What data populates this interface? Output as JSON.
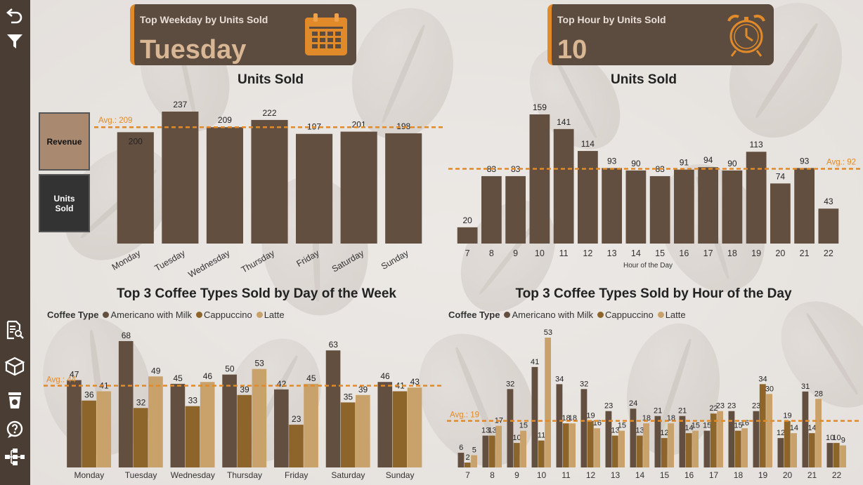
{
  "cards": {
    "weekday": {
      "label": "Top Weekday by Units Sold",
      "value": "Tuesday",
      "icon": "calendar-icon"
    },
    "hour": {
      "label": "Top Hour by Units Sold",
      "value": "10",
      "icon": "alarm-clock-icon"
    }
  },
  "toggles": {
    "revenue": "Revenue",
    "units_sold": "Units Sold"
  },
  "rail_icons": [
    "undo-icon",
    "filter-icon",
    "report-search-icon",
    "box-icon",
    "coffee-cup-icon",
    "help-icon",
    "hierarchy-icon"
  ],
  "colors": {
    "bar": "#634f40",
    "americano": "#634f40",
    "cappuccino": "#8d6429",
    "latte": "#c9a26b",
    "avg": "#e08a2a",
    "accent": "#e08a2a"
  },
  "legend": {
    "title": "Coffee Type",
    "items": [
      {
        "name": "Americano with Milk",
        "color": "#634f40"
      },
      {
        "name": "Cappuccino",
        "color": "#8d6429"
      },
      {
        "name": "Latte",
        "color": "#c9a26b"
      }
    ]
  },
  "chart_data": [
    {
      "id": "weekday-units",
      "type": "bar",
      "title": "Units Sold",
      "categories": [
        "Monday",
        "Tuesday",
        "Wednesday",
        "Thursday",
        "Friday",
        "Saturday",
        "Sunday"
      ],
      "values": [
        200,
        237,
        209,
        222,
        197,
        201,
        198
      ],
      "average": {
        "label": "Avg.: 209",
        "value": 209
      },
      "xlabel": "",
      "ylabel": "",
      "ylim": [
        0,
        237
      ]
    },
    {
      "id": "hour-units",
      "type": "bar",
      "title": "Units Sold",
      "categories": [
        "7",
        "8",
        "9",
        "10",
        "11",
        "12",
        "13",
        "14",
        "15",
        "16",
        "17",
        "18",
        "19",
        "20",
        "21",
        "22"
      ],
      "values": [
        20,
        83,
        83,
        159,
        141,
        114,
        93,
        90,
        83,
        91,
        94,
        90,
        113,
        74,
        93,
        43
      ],
      "average": {
        "label": "Avg.: 92",
        "value": 92
      },
      "xlabel": "Hour of the Day",
      "ylabel": "",
      "ylim": [
        0,
        159
      ]
    },
    {
      "id": "weekday-coffee",
      "type": "bar",
      "title": "Top 3 Coffee Types Sold by Day of the Week",
      "categories": [
        "Monday",
        "Tuesday",
        "Wednesday",
        "Thursday",
        "Friday",
        "Saturday",
        "Sunday"
      ],
      "series": [
        {
          "name": "Americano with Milk",
          "values": [
            47,
            68,
            45,
            50,
            42,
            63,
            46
          ]
        },
        {
          "name": "Cappuccino",
          "values": [
            36,
            32,
            33,
            39,
            23,
            35,
            41
          ]
        },
        {
          "name": "Latte",
          "values": [
            41,
            49,
            46,
            53,
            45,
            39,
            43
          ]
        }
      ],
      "average": {
        "label": "Avg.: 44",
        "value": 44
      },
      "ylim": [
        0,
        68
      ]
    },
    {
      "id": "hour-coffee",
      "type": "bar",
      "title": "Top 3 Coffee Types Sold by Hour of the Day",
      "categories": [
        "7",
        "8",
        "9",
        "10",
        "11",
        "12",
        "13",
        "14",
        "15",
        "16",
        "17",
        "18",
        "19",
        "20",
        "21",
        "22"
      ],
      "series": [
        {
          "name": "Americano with Milk",
          "values": [
            6,
            13,
            32,
            41,
            34,
            32,
            23,
            24,
            21,
            21,
            15,
            23,
            23,
            12,
            31,
            10
          ]
        },
        {
          "name": "Cappuccino",
          "values": [
            2,
            13,
            10,
            11,
            18,
            19,
            13,
            13,
            12,
            14,
            22,
            15,
            34,
            19,
            14,
            10
          ]
        },
        {
          "name": "Latte",
          "values": [
            5,
            17,
            15,
            53,
            18,
            16,
            15,
            18,
            18,
            15,
            23,
            16,
            30,
            14,
            28,
            9
          ]
        }
      ],
      "average": {
        "label": "Avg.: 19",
        "value": 19
      },
      "ylim": [
        0,
        53
      ]
    }
  ]
}
